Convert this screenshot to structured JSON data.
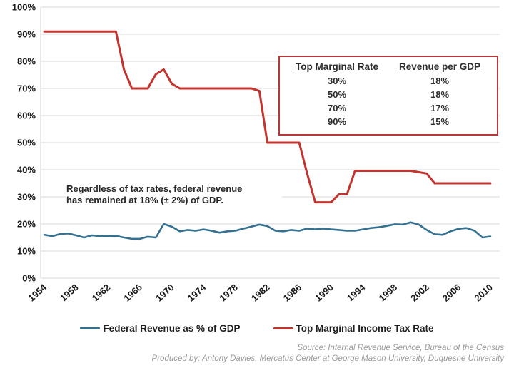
{
  "chart_data": {
    "type": "line",
    "x": [
      1954,
      1955,
      1956,
      1957,
      1958,
      1959,
      1960,
      1961,
      1962,
      1963,
      1964,
      1965,
      1966,
      1967,
      1968,
      1969,
      1970,
      1971,
      1972,
      1973,
      1974,
      1975,
      1976,
      1977,
      1978,
      1979,
      1980,
      1981,
      1982,
      1983,
      1984,
      1985,
      1986,
      1987,
      1988,
      1989,
      1990,
      1991,
      1992,
      1993,
      1994,
      1995,
      1996,
      1997,
      1998,
      1999,
      2000,
      2001,
      2002,
      2003,
      2004,
      2005,
      2006,
      2007,
      2008,
      2009,
      2010
    ],
    "series": [
      {
        "id": "federal-revenue-line",
        "name": "Federal Revenue as % of GDP",
        "color": "#34708f",
        "width": 2.6,
        "values": [
          16.0,
          15.5,
          16.3,
          16.5,
          15.8,
          15.0,
          15.8,
          15.5,
          15.5,
          15.6,
          15.0,
          14.5,
          14.5,
          15.3,
          15.0,
          20.0,
          19.0,
          17.3,
          17.8,
          17.5,
          18.0,
          17.5,
          16.8,
          17.3,
          17.5,
          18.3,
          19.0,
          19.8,
          19.2,
          17.5,
          17.3,
          17.8,
          17.5,
          18.3,
          18.0,
          18.3,
          18.0,
          17.8,
          17.5,
          17.5,
          18.0,
          18.5,
          18.8,
          19.3,
          19.9,
          19.8,
          20.6,
          19.8,
          17.8,
          16.2,
          16.0,
          17.3,
          18.2,
          18.5,
          17.5,
          15.0,
          15.4
        ]
      },
      {
        "id": "tax-rate-line",
        "name": "Top Marginal Income Tax Rate",
        "color": "#c2342f",
        "width": 3,
        "values": [
          91,
          91,
          91,
          91,
          91,
          91,
          91,
          91,
          91,
          91,
          77,
          70,
          70,
          70,
          75.25,
          77,
          71.75,
          70,
          70,
          70,
          70,
          70,
          70,
          70,
          70,
          70,
          70,
          69.1,
          50,
          50,
          50,
          50,
          50,
          38.5,
          28,
          28,
          28,
          31,
          31,
          39.6,
          39.6,
          39.6,
          39.6,
          39.6,
          39.6,
          39.6,
          39.6,
          39.1,
          38.6,
          35,
          35,
          35,
          35,
          35,
          35,
          35,
          35
        ]
      }
    ],
    "title": "",
    "xlabel": "",
    "ylabel": "",
    "ylim": [
      0,
      100
    ],
    "yticks": [
      "0%",
      "10%",
      "20%",
      "30%",
      "40%",
      "50%",
      "60%",
      "70%",
      "80%",
      "90%",
      "100%"
    ],
    "xticks": [
      1954,
      1958,
      1962,
      1966,
      1970,
      1974,
      1978,
      1982,
      1986,
      1990,
      1994,
      1998,
      2002,
      2006,
      2010
    ],
    "grid": true,
    "legend_position": "bottom"
  },
  "annotation": {
    "line1": "Regardless of tax rates, federal revenue",
    "line2": "has remained at 18% (± 2%) of GDP."
  },
  "inset_table": {
    "headers": [
      "Top Marginal Rate",
      "Revenue per GDP"
    ],
    "rows": [
      [
        "30%",
        "18%"
      ],
      [
        "50%",
        "18%"
      ],
      [
        "70%",
        "17%"
      ],
      [
        "90%",
        "15%"
      ]
    ],
    "border_color": "#b5393b"
  },
  "legend": [
    {
      "label": "Federal Revenue as % of GDP",
      "color": "#34708f"
    },
    {
      "label": "Top Marginal Income Tax Rate",
      "color": "#c2342f"
    }
  ],
  "footer": {
    "source": "Source: Internal Revenue Service, Bureau of the Census",
    "produced_by": "Produced by: Antony Davies, Mercatus Center at George Mason University, Duquesne University"
  },
  "colors": {
    "gridline": "#d9d9d9",
    "tick_text": "#1a1a1a"
  }
}
